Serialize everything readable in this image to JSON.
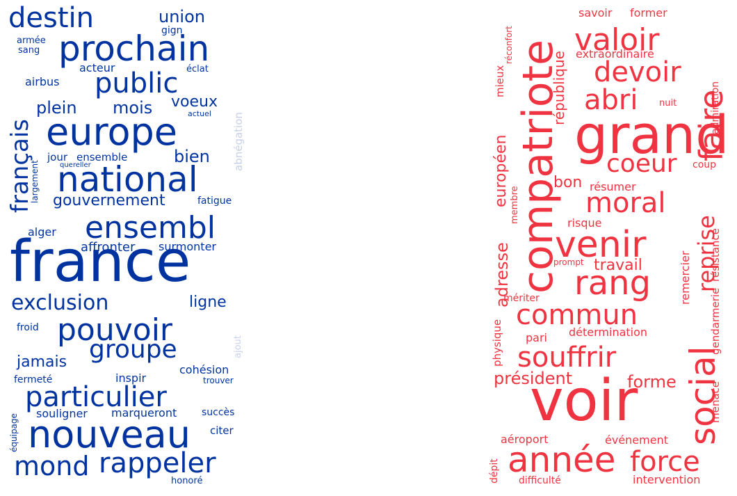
{
  "colors": {
    "blue": "#0033a0",
    "blue_faint": "#c8d0e8",
    "red": "#ef3340"
  },
  "clouds": {
    "left": {
      "words": [
        "france",
        "europe",
        "national",
        "nouveau",
        "prochain",
        "ensembl",
        "pouvoir",
        "particulier",
        "rappeler",
        "destin",
        "public",
        "groupe",
        "mond",
        "exclusion",
        "français",
        "gouvernement",
        "union",
        "plein",
        "mois",
        "bien",
        "voeux",
        "jamais",
        "ligne",
        "acteur",
        "airbus",
        "affronter",
        "surmonter",
        "alger",
        "marqueront",
        "souligner",
        "cohésion",
        "inspir",
        "fermeté",
        "citer",
        "succès",
        "froid",
        "éclat",
        "gign",
        "armée",
        "sang",
        "jour",
        "ensemble",
        "fatigue",
        "largement",
        "quereller",
        "actuel",
        "abnégation",
        "ajout",
        "trouver",
        "équipage",
        "honoré"
      ]
    },
    "right": {
      "words": [
        "voir",
        "compatriote",
        "grand",
        "année",
        "venir",
        "rang",
        "social",
        "faire",
        "valoir",
        "devoir",
        "commun",
        "souffrir",
        "force",
        "moral",
        "abri",
        "coeur",
        "reprise",
        "président",
        "adresse",
        "européen",
        "république",
        "forme",
        "travail",
        "bon",
        "résumer",
        "risque",
        "savoir",
        "former",
        "extraordinaire",
        "réconfort",
        "mieux",
        "membre",
        "remercier",
        "résistance",
        "gendarmerie",
        "coup",
        "nuit",
        "admiration",
        "prompt",
        "mériter",
        "détermination",
        "pari",
        "physique",
        "menace",
        "aéroport",
        "événement",
        "dépit",
        "difficulté",
        "intervention"
      ]
    }
  }
}
